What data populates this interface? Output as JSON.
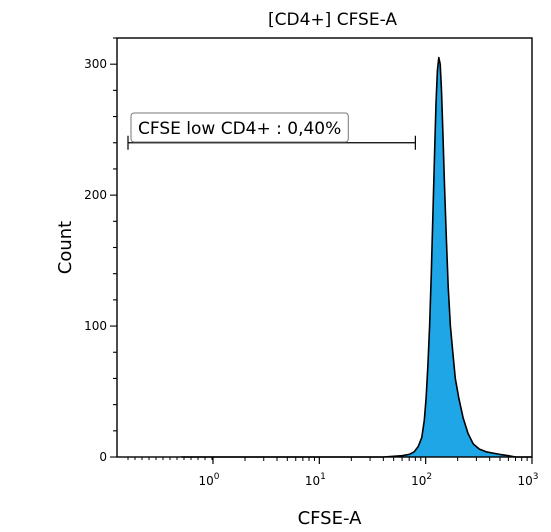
{
  "chart_data": {
    "type": "area",
    "title": "[CD4+] CFSE-A",
    "xlabel": "CFSE-A",
    "ylabel": "Count",
    "x_scale": "biexponential-log",
    "xlim": [
      -0.15,
      1000
    ],
    "ylim": [
      0,
      320
    ],
    "x_ticks": [
      {
        "value": 1,
        "base": "10",
        "exp": "0"
      },
      {
        "value": 10,
        "base": "10",
        "exp": "1"
      },
      {
        "value": 100,
        "base": "10",
        "exp": "2"
      },
      {
        "value": 1000,
        "base": "10",
        "exp": "3"
      }
    ],
    "y_ticks": [
      0,
      100,
      200,
      300
    ],
    "fill_color": "#1fa6e6",
    "line_color": "#000000",
    "series": [
      {
        "x": [
          0.5,
          5,
          40,
          60,
          70,
          78,
          85,
          92,
          97,
          101,
          105,
          109,
          113,
          117,
          121,
          125,
          129,
          133,
          137,
          141,
          145,
          150,
          156,
          163,
          171,
          180,
          190,
          205,
          225,
          250,
          280,
          320,
          370,
          430,
          500,
          600,
          700,
          800,
          900,
          1000
        ],
        "y": [
          0,
          0,
          0,
          1,
          2,
          4,
          8,
          15,
          28,
          45,
          70,
          100,
          140,
          185,
          230,
          270,
          295,
          305,
          300,
          280,
          250,
          210,
          170,
          130,
          100,
          80,
          60,
          45,
          30,
          18,
          10,
          6,
          4,
          3,
          2,
          1,
          0,
          0,
          0,
          0
        ]
      }
    ],
    "gate": {
      "label": "CFSE low CD4+ : 0,40%",
      "x_start": -0.13,
      "x_end": 80,
      "y": 240
    }
  }
}
